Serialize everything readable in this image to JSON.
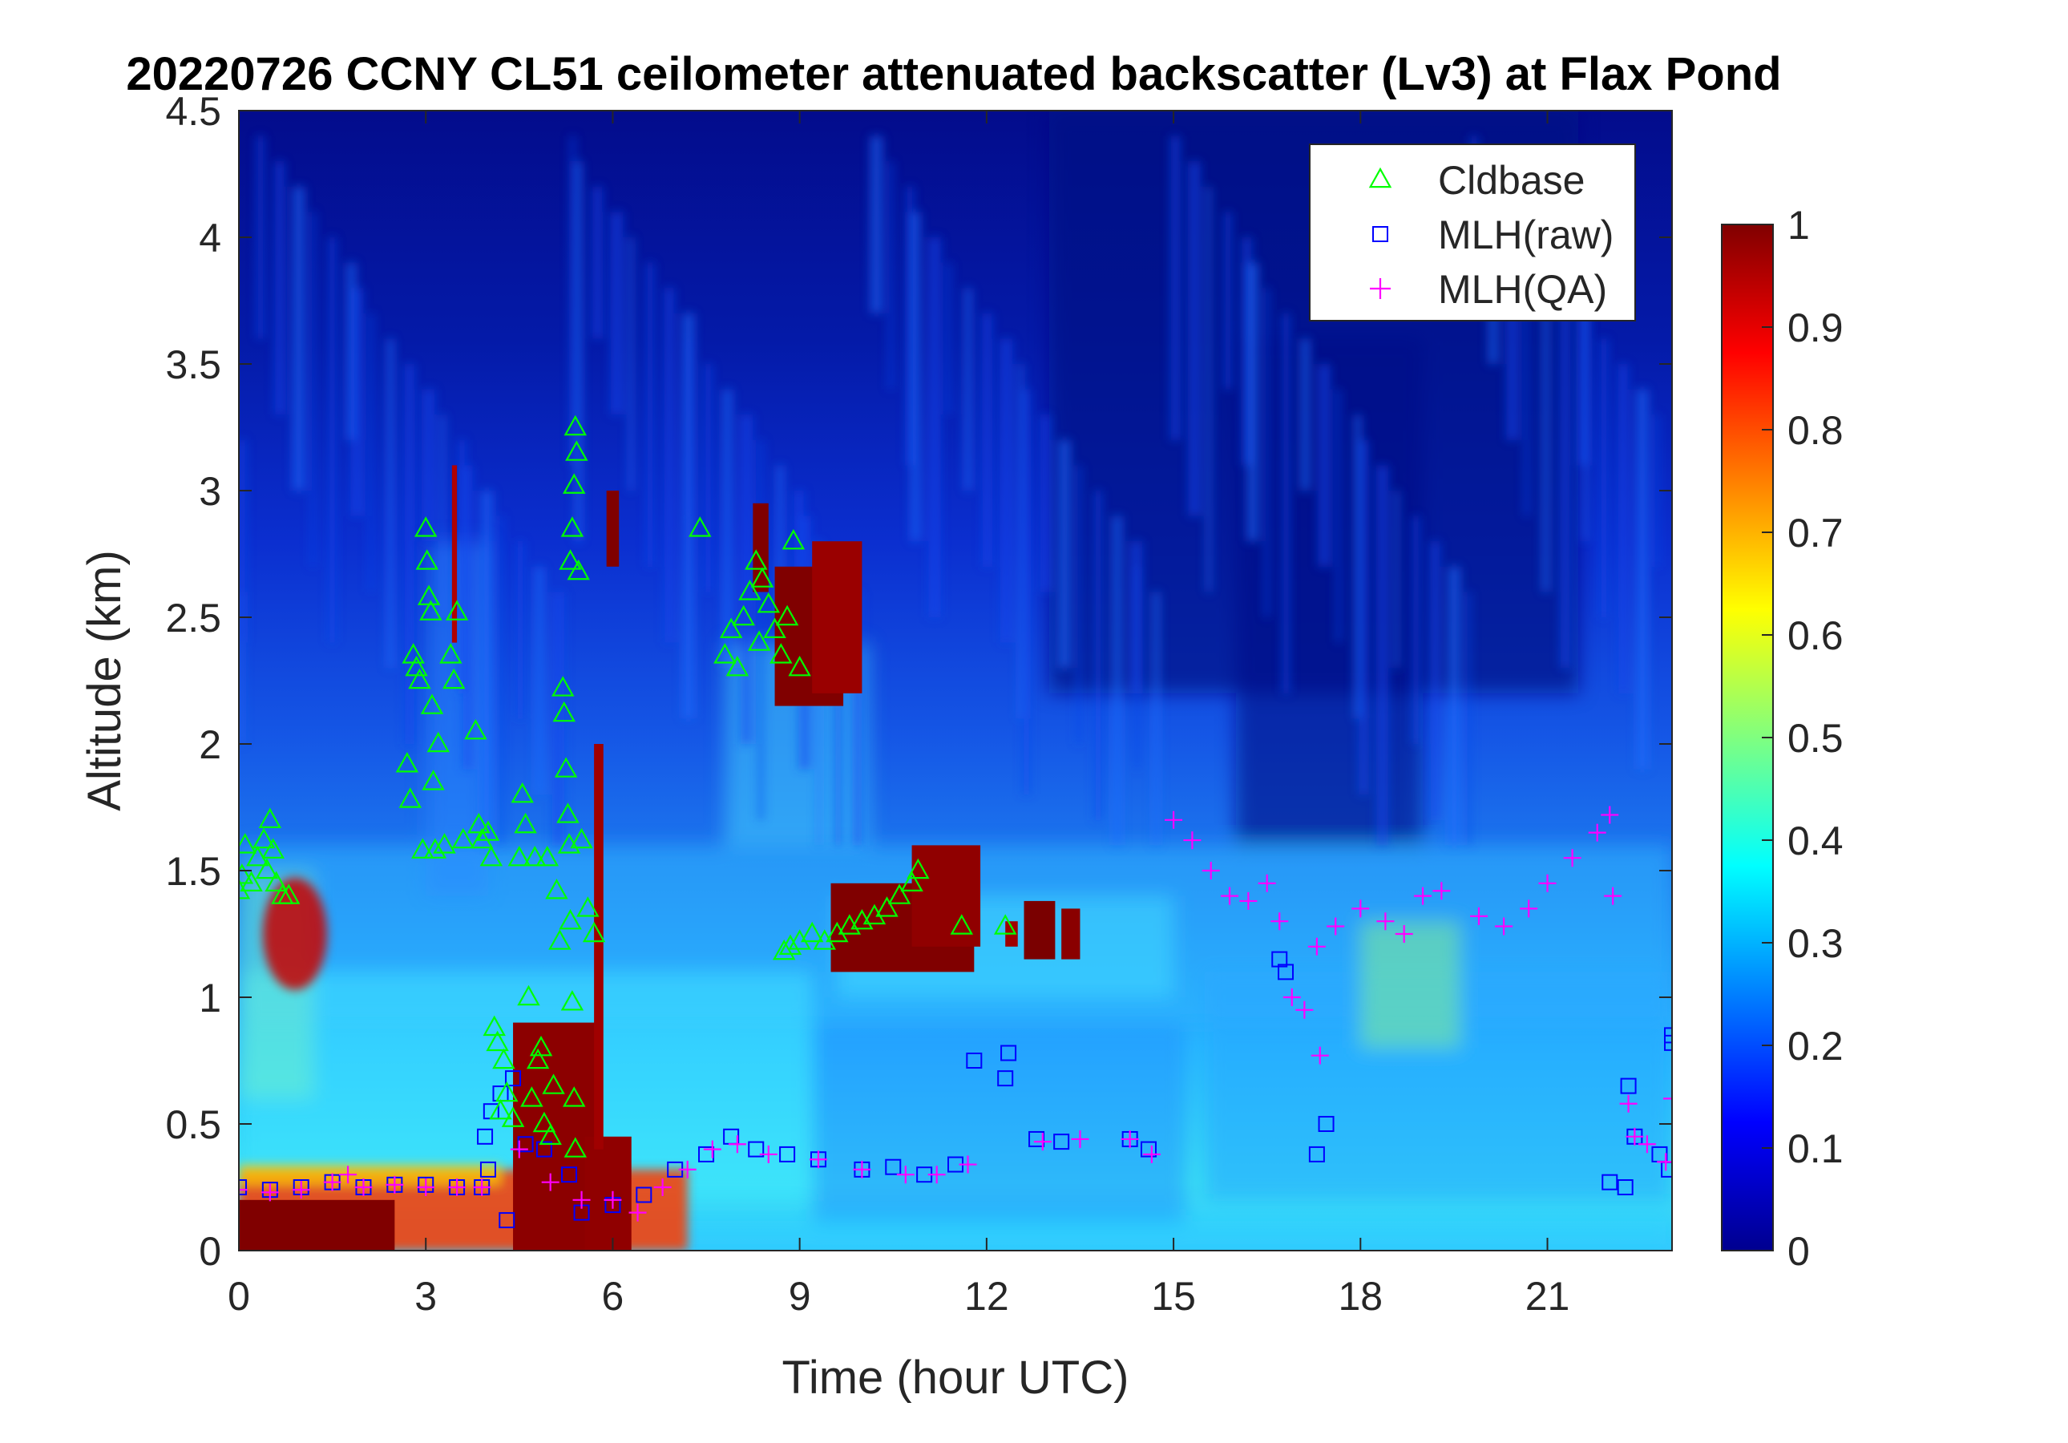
{
  "chart_data": {
    "type": "heatmap",
    "title": "20220726 CCNY CL51 ceilometer attenuated backscatter (Lv3) at Flax Pond",
    "xlabel": "Time (hour UTC)",
    "ylabel": "Altitude (km)",
    "xlim": [
      0,
      23
    ],
    "ylim": [
      0,
      4.5
    ],
    "xticks": [
      0,
      3,
      6,
      9,
      12,
      15,
      18,
      21
    ],
    "yticks": [
      0,
      0.5,
      1,
      1.5,
      2,
      2.5,
      3,
      3.5,
      4,
      4.5
    ],
    "colorbar": {
      "colormap": "jet",
      "clim": [
        0,
        1
      ],
      "ticks": [
        0,
        0.1,
        0.2,
        0.3,
        0.4,
        0.5,
        0.6,
        0.7,
        0.8,
        0.9,
        1
      ]
    },
    "legend": {
      "position": "top-right",
      "entries": [
        {
          "label": "Cldbase",
          "marker": "triangle",
          "color": "#00ff00"
        },
        {
          "label": "MLH(raw)",
          "marker": "square",
          "color": "#0000ff"
        },
        {
          "label": "MLH(QA)",
          "marker": "plus",
          "color": "#ff00ff"
        }
      ]
    },
    "cldbase": [
      [
        0.0,
        1.42
      ],
      [
        0.05,
        1.48
      ],
      [
        0.1,
        1.6
      ],
      [
        0.2,
        1.45
      ],
      [
        0.3,
        1.55
      ],
      [
        0.4,
        1.62
      ],
      [
        0.45,
        1.5
      ],
      [
        0.5,
        1.7
      ],
      [
        0.55,
        1.58
      ],
      [
        0.6,
        1.45
      ],
      [
        0.7,
        1.4
      ],
      [
        0.8,
        1.4
      ],
      [
        2.7,
        1.92
      ],
      [
        2.75,
        1.78
      ],
      [
        2.8,
        2.35
      ],
      [
        2.85,
        2.3
      ],
      [
        2.9,
        2.25
      ],
      [
        2.95,
        1.58
      ],
      [
        3.0,
        2.85
      ],
      [
        3.02,
        2.72
      ],
      [
        3.05,
        2.58
      ],
      [
        3.08,
        2.52
      ],
      [
        3.1,
        2.15
      ],
      [
        3.12,
        1.85
      ],
      [
        3.15,
        1.58
      ],
      [
        3.2,
        2.0
      ],
      [
        3.3,
        1.6
      ],
      [
        3.4,
        2.35
      ],
      [
        3.45,
        2.25
      ],
      [
        3.5,
        2.52
      ],
      [
        3.6,
        1.62
      ],
      [
        3.8,
        2.05
      ],
      [
        3.85,
        1.68
      ],
      [
        3.9,
        1.62
      ],
      [
        4.0,
        1.65
      ],
      [
        4.05,
        1.55
      ],
      [
        4.1,
        0.88
      ],
      [
        4.15,
        0.82
      ],
      [
        4.2,
        0.55
      ],
      [
        4.25,
        0.75
      ],
      [
        4.3,
        0.62
      ],
      [
        4.4,
        0.52
      ],
      [
        4.5,
        1.55
      ],
      [
        4.55,
        1.8
      ],
      [
        4.6,
        1.68
      ],
      [
        4.65,
        1.0
      ],
      [
        4.7,
        0.6
      ],
      [
        4.75,
        1.55
      ],
      [
        4.8,
        0.75
      ],
      [
        4.85,
        0.8
      ],
      [
        4.9,
        0.5
      ],
      [
        4.95,
        1.55
      ],
      [
        5.0,
        0.45
      ],
      [
        5.05,
        0.65
      ],
      [
        5.1,
        1.42
      ],
      [
        5.15,
        1.22
      ],
      [
        5.2,
        2.22
      ],
      [
        5.22,
        2.12
      ],
      [
        5.25,
        1.9
      ],
      [
        5.28,
        1.72
      ],
      [
        5.3,
        1.6
      ],
      [
        5.32,
        1.3
      ],
      [
        5.35,
        0.98
      ],
      [
        5.38,
        0.6
      ],
      [
        5.4,
        0.4
      ],
      [
        5.32,
        2.72
      ],
      [
        5.35,
        2.85
      ],
      [
        5.38,
        3.02
      ],
      [
        5.4,
        3.25
      ],
      [
        5.42,
        3.15
      ],
      [
        5.45,
        2.68
      ],
      [
        5.5,
        1.62
      ],
      [
        5.6,
        1.35
      ],
      [
        5.7,
        1.25
      ],
      [
        7.4,
        2.85
      ],
      [
        7.8,
        2.35
      ],
      [
        7.9,
        2.45
      ],
      [
        8.0,
        2.3
      ],
      [
        8.1,
        2.5
      ],
      [
        8.2,
        2.6
      ],
      [
        8.3,
        2.72
      ],
      [
        8.35,
        2.4
      ],
      [
        8.4,
        2.65
      ],
      [
        8.5,
        2.55
      ],
      [
        8.6,
        2.45
      ],
      [
        8.7,
        2.35
      ],
      [
        8.8,
        2.5
      ],
      [
        8.9,
        2.8
      ],
      [
        9.0,
        2.3
      ],
      [
        8.75,
        1.18
      ],
      [
        8.85,
        1.2
      ],
      [
        9.0,
        1.22
      ],
      [
        9.2,
        1.25
      ],
      [
        9.4,
        1.22
      ],
      [
        9.6,
        1.25
      ],
      [
        9.8,
        1.28
      ],
      [
        10.0,
        1.3
      ],
      [
        10.2,
        1.32
      ],
      [
        10.4,
        1.35
      ],
      [
        10.6,
        1.4
      ],
      [
        10.8,
        1.45
      ],
      [
        10.9,
        1.5
      ],
      [
        11.6,
        1.28
      ],
      [
        12.3,
        1.28
      ]
    ],
    "mlh_raw": [
      [
        0.0,
        0.25
      ],
      [
        0.5,
        0.24
      ],
      [
        1.0,
        0.25
      ],
      [
        1.5,
        0.27
      ],
      [
        2.0,
        0.25
      ],
      [
        2.5,
        0.26
      ],
      [
        3.0,
        0.26
      ],
      [
        3.5,
        0.25
      ],
      [
        3.9,
        0.25
      ],
      [
        3.95,
        0.45
      ],
      [
        4.0,
        0.32
      ],
      [
        4.05,
        0.55
      ],
      [
        4.2,
        0.62
      ],
      [
        4.3,
        0.12
      ],
      [
        4.4,
        0.68
      ],
      [
        4.6,
        0.42
      ],
      [
        4.9,
        0.4
      ],
      [
        5.3,
        0.3
      ],
      [
        5.5,
        0.15
      ],
      [
        6.0,
        0.18
      ],
      [
        6.5,
        0.22
      ],
      [
        7.0,
        0.32
      ],
      [
        7.5,
        0.38
      ],
      [
        7.9,
        0.45
      ],
      [
        8.3,
        0.4
      ],
      [
        8.8,
        0.38
      ],
      [
        9.3,
        0.36
      ],
      [
        10.0,
        0.32
      ],
      [
        10.5,
        0.33
      ],
      [
        11.0,
        0.3
      ],
      [
        11.5,
        0.34
      ],
      [
        11.8,
        0.75
      ],
      [
        12.3,
        0.68
      ],
      [
        12.35,
        0.78
      ],
      [
        12.8,
        0.44
      ],
      [
        13.2,
        0.43
      ],
      [
        14.3,
        0.44
      ],
      [
        14.6,
        0.4
      ],
      [
        16.7,
        1.15
      ],
      [
        16.8,
        1.1
      ],
      [
        17.3,
        0.38
      ],
      [
        17.45,
        0.5
      ],
      [
        22.0,
        0.27
      ],
      [
        22.25,
        0.25
      ],
      [
        22.3,
        0.65
      ],
      [
        22.4,
        0.45
      ],
      [
        22.8,
        0.38
      ],
      [
        22.95,
        0.32
      ],
      [
        23.0,
        0.85
      ],
      [
        23.0,
        0.82
      ]
    ],
    "mlh_qa": [
      [
        0.0,
        0.24
      ],
      [
        0.5,
        0.23
      ],
      [
        1.0,
        0.24
      ],
      [
        1.5,
        0.27
      ],
      [
        1.75,
        0.3
      ],
      [
        2.0,
        0.25
      ],
      [
        2.5,
        0.26
      ],
      [
        3.0,
        0.25
      ],
      [
        3.5,
        0.25
      ],
      [
        3.9,
        0.25
      ],
      [
        4.5,
        0.4
      ],
      [
        5.0,
        0.27
      ],
      [
        5.5,
        0.2
      ],
      [
        6.0,
        0.2
      ],
      [
        6.4,
        0.15
      ],
      [
        6.8,
        0.25
      ],
      [
        7.2,
        0.32
      ],
      [
        7.6,
        0.4
      ],
      [
        8.0,
        0.42
      ],
      [
        8.5,
        0.38
      ],
      [
        9.3,
        0.36
      ],
      [
        10.0,
        0.32
      ],
      [
        10.7,
        0.3
      ],
      [
        11.2,
        0.3
      ],
      [
        11.7,
        0.34
      ],
      [
        12.9,
        0.43
      ],
      [
        13.5,
        0.44
      ],
      [
        14.3,
        0.44
      ],
      [
        14.65,
        0.38
      ],
      [
        15.0,
        1.7
      ],
      [
        15.3,
        1.62
      ],
      [
        15.6,
        1.5
      ],
      [
        15.9,
        1.4
      ],
      [
        16.2,
        1.38
      ],
      [
        16.5,
        1.45
      ],
      [
        16.7,
        1.3
      ],
      [
        16.9,
        1.0
      ],
      [
        17.1,
        0.95
      ],
      [
        17.3,
        1.2
      ],
      [
        17.35,
        0.77
      ],
      [
        17.6,
        1.28
      ],
      [
        18.0,
        1.35
      ],
      [
        18.4,
        1.3
      ],
      [
        18.7,
        1.25
      ],
      [
        19.0,
        1.4
      ],
      [
        19.3,
        1.42
      ],
      [
        19.9,
        1.32
      ],
      [
        20.3,
        1.28
      ],
      [
        20.7,
        1.35
      ],
      [
        21.0,
        1.45
      ],
      [
        21.4,
        1.55
      ],
      [
        21.8,
        1.65
      ],
      [
        22.0,
        1.72
      ],
      [
        22.05,
        1.4
      ],
      [
        22.3,
        0.58
      ],
      [
        22.4,
        0.45
      ],
      [
        22.6,
        0.42
      ],
      [
        22.9,
        0.35
      ],
      [
        23.0,
        0.6
      ]
    ]
  }
}
